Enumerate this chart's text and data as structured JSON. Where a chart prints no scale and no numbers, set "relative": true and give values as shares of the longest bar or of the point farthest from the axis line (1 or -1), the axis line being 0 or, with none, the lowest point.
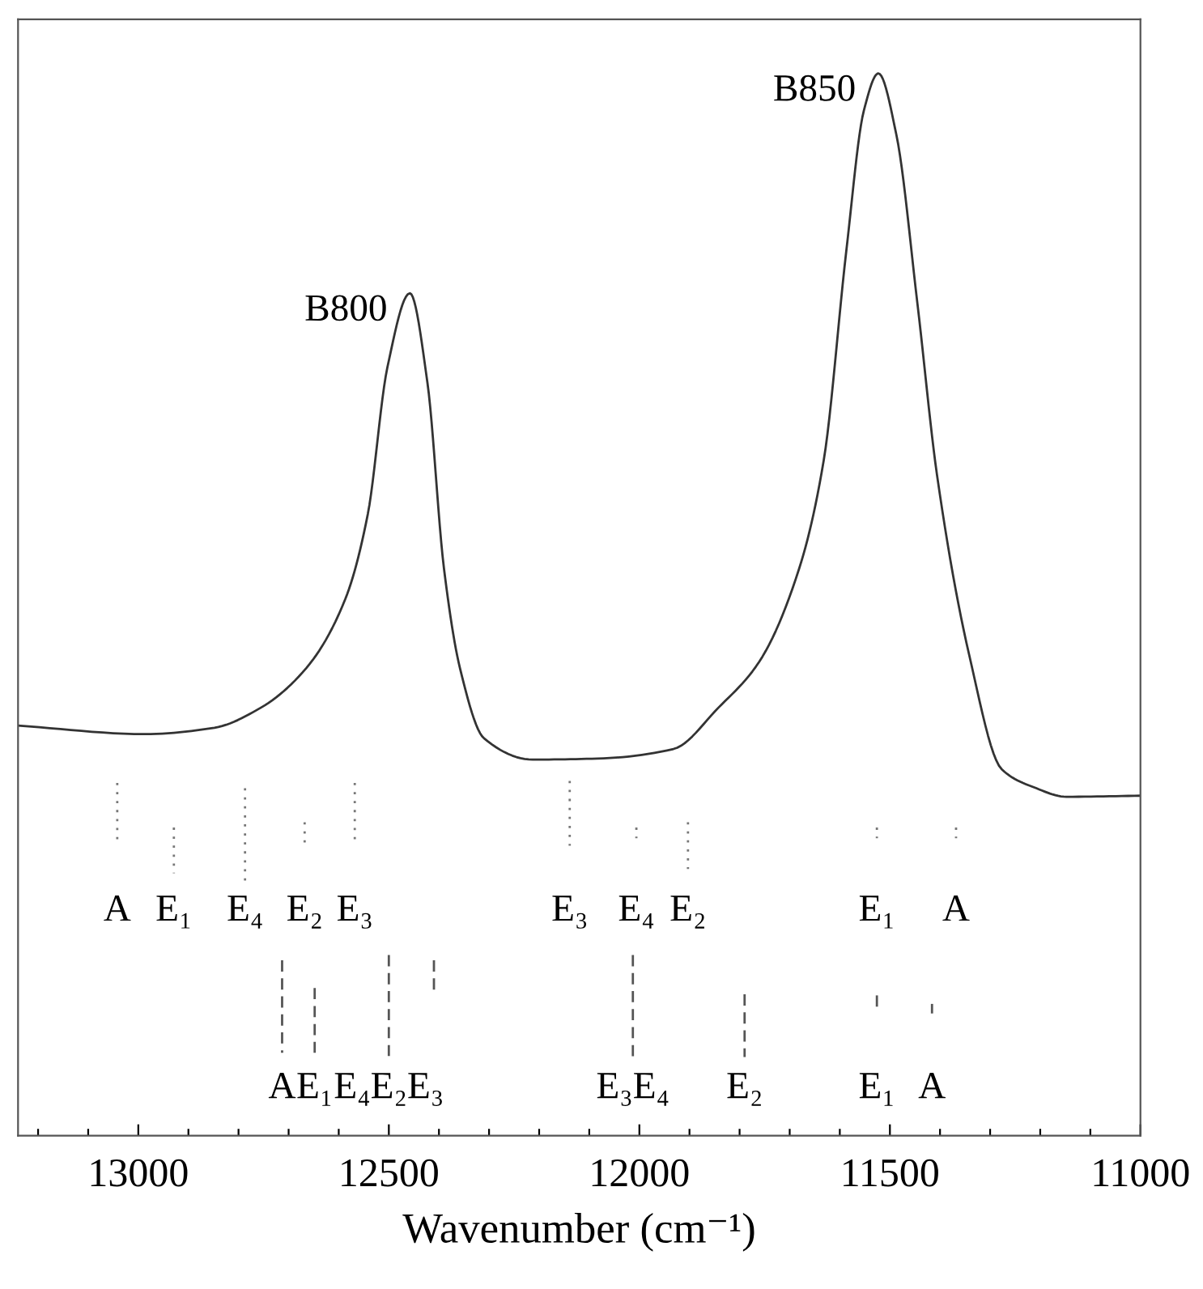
{
  "chart_data": {
    "type": "line",
    "relative": true,
    "xlabel": "Wavenumber (cm⁻¹)",
    "xlim": [
      13240,
      11000
    ],
    "xticks": [
      {
        "value": 13200,
        "label": null
      },
      {
        "value": 13100,
        "label": null
      },
      13000,
      {
        "value": 12900,
        "label": null
      },
      {
        "value": 12800,
        "label": null
      },
      {
        "value": 12700,
        "label": null
      },
      {
        "value": 12600,
        "label": null
      },
      12500,
      {
        "value": 12400,
        "label": null
      },
      {
        "value": 12300,
        "label": null
      },
      {
        "value": 12200,
        "label": null
      },
      {
        "value": 12100,
        "label": null
      },
      12000,
      {
        "value": 11900,
        "label": null
      },
      {
        "value": 11800,
        "label": null
      },
      {
        "value": 11700,
        "label": null
      },
      {
        "value": 11600,
        "label": null
      },
      11500,
      {
        "value": 11400,
        "label": null
      },
      {
        "value": 11300,
        "label": null
      },
      {
        "value": 11200,
        "label": null
      },
      {
        "value": 11100,
        "label": null
      },
      11000
    ],
    "tick_labels": "x",
    "grid": false,
    "legend": false,
    "marker": "none",
    "series": [
      {
        "color": "#333333",
        "line_style": "solid",
        "x": [
          13240,
          12987,
          12848,
          12755,
          12665,
          12587,
          12542,
          12503,
          12458,
          12423,
          12390,
          12358,
          12310,
          12213,
          12084,
          11932,
          11842,
          11761,
          11681,
          11632,
          11587,
          11552,
          11523,
          11487,
          11445,
          11406,
          11342,
          11277,
          11213,
          11148,
          11000
        ],
        "values": [
          0.386,
          0.378,
          0.384,
          0.403,
          0.44,
          0.505,
          0.585,
          0.723,
          0.793,
          0.709,
          0.534,
          0.44,
          0.374,
          0.354,
          0.355,
          0.364,
          0.403,
          0.446,
          0.534,
          0.636,
          0.833,
          0.965,
          1.0,
          0.942,
          0.783,
          0.622,
          0.453,
          0.345,
          0.328,
          0.319,
          0.32
        ]
      },
      {
        "color": "#777777",
        "line_style": "dotted",
        "x": [
          13042,
          13042
        ],
        "values": [
          0.332,
          0.273
        ]
      },
      {
        "color": "#777777",
        "line_style": "dotted",
        "x": [
          12929,
          12929
        ],
        "values": [
          0.29,
          0.247
        ]
      },
      {
        "color": "#777777",
        "line_style": "dotted",
        "x": [
          12787,
          12787
        ],
        "values": [
          0.327,
          0.236
        ]
      },
      {
        "color": "#777777",
        "line_style": "dotted",
        "x": [
          12668,
          12668
        ],
        "values": [
          0.295,
          0.273
        ]
      },
      {
        "color": "#777777",
        "line_style": "dotted",
        "x": [
          12568,
          12568
        ],
        "values": [
          0.332,
          0.277
        ]
      },
      {
        "color": "#777777",
        "line_style": "dotted",
        "x": [
          12139,
          12139
        ],
        "values": [
          0.334,
          0.273
        ]
      },
      {
        "color": "#777777",
        "line_style": "dotted",
        "x": [
          12006,
          12006
        ],
        "values": [
          0.29,
          0.28
        ]
      },
      {
        "color": "#777777",
        "line_style": "dotted",
        "x": [
          11903,
          11903
        ],
        "values": [
          0.295,
          0.251
        ]
      },
      {
        "color": "#777777",
        "line_style": "dotted",
        "x": [
          11526,
          11526
        ],
        "values": [
          0.29,
          0.28
        ]
      },
      {
        "color": "#777777",
        "line_style": "dotted",
        "x": [
          11368,
          11368
        ],
        "values": [
          0.29,
          0.28
        ]
      },
      {
        "color": "#555555",
        "line_style": "dashed",
        "x": [
          12713,
          12713
        ],
        "values": [
          0.165,
          0.078
        ]
      },
      {
        "color": "#555555",
        "line_style": "dashed",
        "x": [
          12648,
          12648
        ],
        "values": [
          0.139,
          0.078
        ]
      },
      {
        "color": "#555555",
        "line_style": "dashed",
        "x": [
          12500,
          12500
        ],
        "values": [
          0.17,
          0.075
        ]
      },
      {
        "color": "#555555",
        "line_style": "dashed",
        "x": [
          12410,
          12410
        ],
        "values": [
          0.165,
          0.135
        ]
      },
      {
        "color": "#555555",
        "line_style": "dashed",
        "x": [
          12013,
          12013
        ],
        "values": [
          0.17,
          0.074
        ]
      },
      {
        "color": "#555555",
        "line_style": "dashed",
        "x": [
          11790,
          11790
        ],
        "values": [
          0.133,
          0.074
        ]
      },
      {
        "color": "#555555",
        "line_style": "dashed",
        "x": [
          11526,
          11526
        ],
        "values": [
          0.132,
          0.116
        ]
      },
      {
        "color": "#555555",
        "line_style": "dashed",
        "x": [
          11416,
          11416
        ],
        "values": [
          0.124,
          0.115
        ]
      }
    ],
    "annotations": [
      {
        "text": "B800",
        "x": 12458,
        "y": 0.793
      },
      {
        "text": "B850",
        "x": 11523,
        "y": 1.0
      },
      {
        "text": "A",
        "x": 13042,
        "y": 0.273
      },
      {
        "text": "E₁",
        "x": 12929,
        "y": 0.247
      },
      {
        "text": "E₄",
        "x": 12787,
        "y": 0.236
      },
      {
        "text": "E₂",
        "x": 12668,
        "y": 0.273
      },
      {
        "text": "E₃",
        "x": 12568,
        "y": 0.277
      },
      {
        "text": "E₃",
        "x": 12139,
        "y": 0.273
      },
      {
        "text": "E₄",
        "x": 12006,
        "y": 0.28
      },
      {
        "text": "E₂",
        "x": 11903,
        "y": 0.251
      },
      {
        "text": "E₁",
        "x": 11526,
        "y": 0.28
      },
      {
        "text": "A",
        "x": 11368,
        "y": 0.28
      },
      {
        "text": "A",
        "x": 12713,
        "y": 0.078
      },
      {
        "text": "E₁",
        "x": 12648,
        "y": 0.078
      },
      {
        "text": "E₄E₂E₃",
        "x": 12500,
        "y": 0.075
      },
      {
        "text": "E₃E₄",
        "x": 12013,
        "y": 0.074
      },
      {
        "text": "E₂",
        "x": 11790,
        "y": 0.074
      },
      {
        "text": "E₁",
        "x": 11526,
        "y": 0.116
      },
      {
        "text": "A",
        "x": 11416,
        "y": 0.115
      }
    ]
  }
}
